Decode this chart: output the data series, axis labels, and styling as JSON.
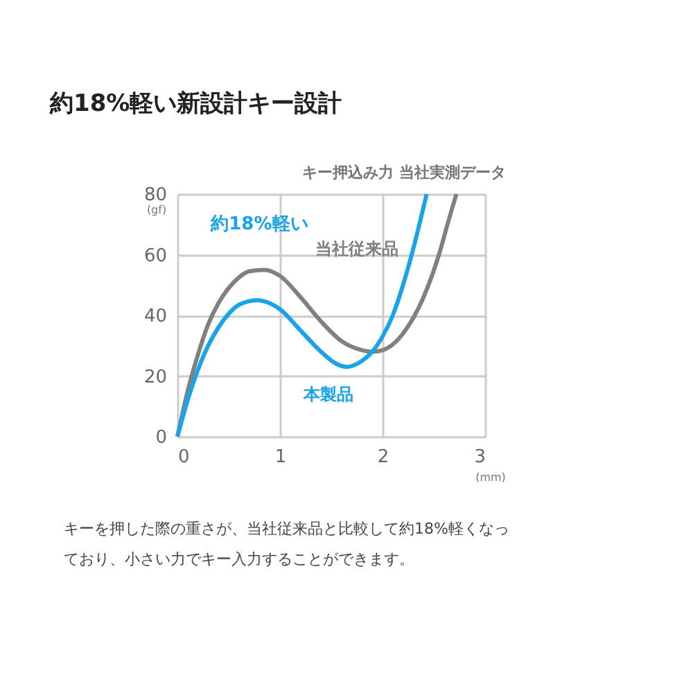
{
  "chart_data": {
    "type": "line",
    "title": "約18%軽い新設計キー設計",
    "subtitle": "キー押込み力 当社実測データ",
    "xlabel": "(mm)",
    "ylabel": "(gf)",
    "series": [
      {
        "name": "当社従来品",
        "color": "#808080",
        "x": [
          0,
          0.1,
          0.2,
          0.3,
          0.4,
          0.5,
          0.6,
          0.7,
          0.85,
          1.0,
          1.2,
          1.4,
          1.6,
          1.8,
          1.9,
          2.0,
          2.2,
          2.4,
          2.55,
          2.65,
          2.72
        ],
        "values": [
          0,
          15,
          27,
          37,
          44,
          49,
          52.5,
          54.5,
          55,
          53,
          46,
          38,
          31.5,
          28.5,
          28,
          28.5,
          34,
          46,
          60,
          72,
          80
        ]
      },
      {
        "name": "本製品",
        "color": "#1aa3e8",
        "x": [
          0,
          0.1,
          0.2,
          0.3,
          0.4,
          0.5,
          0.6,
          0.78,
          0.9,
          1.0,
          1.2,
          1.4,
          1.55,
          1.65,
          1.8,
          1.9,
          2.0,
          2.1,
          2.2,
          2.3,
          2.43
        ],
        "values": [
          0,
          12,
          22,
          30,
          36,
          40.5,
          43.5,
          45,
          44,
          42,
          35,
          28,
          24,
          23,
          25,
          28,
          33,
          40,
          50,
          62,
          80
        ]
      }
    ],
    "xlim": [
      0,
      3
    ],
    "ylim": [
      0,
      80
    ],
    "xticks": [
      0,
      1,
      2,
      3
    ],
    "yticks": [
      0,
      20,
      40,
      60,
      80
    ],
    "grid": true,
    "line_style": "solid",
    "marker": "none",
    "annotations": [
      {
        "text": "約18%軽い",
        "x": 0.8,
        "y": 55
      },
      "キーを押した際の重さが、当社従来品と比較して約18%軽くなっ",
      "ており、小さい力でキー入力することができます。"
    ]
  }
}
